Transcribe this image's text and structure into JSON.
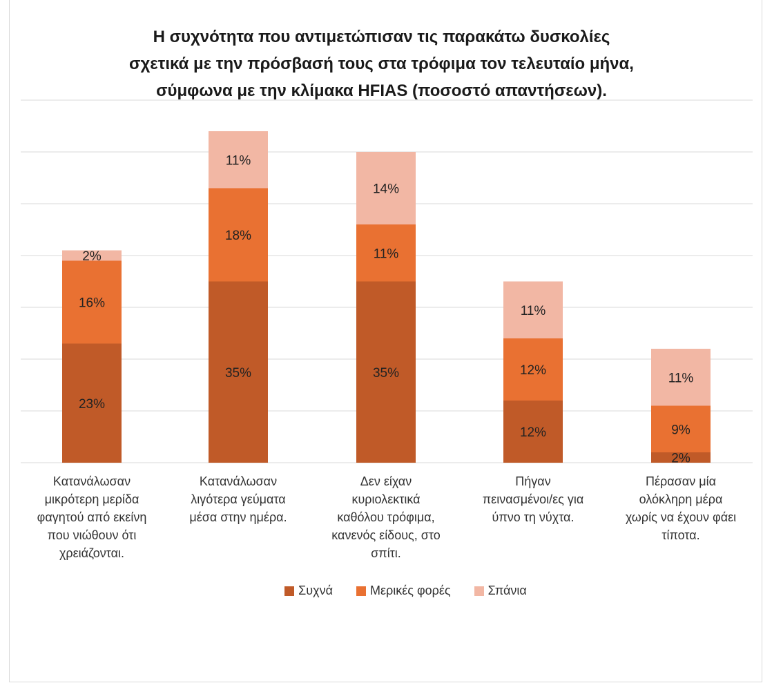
{
  "chart_data": {
    "type": "bar",
    "stacked": true,
    "title_lines": [
      "Η συχνότητα που αντιμετώπισαν τις παρακάτω δυσκολίες",
      "σχετικά με την πρόσβασή τους στα τρόφιμα τον τελευταίο μήνα,",
      "σύμφωνα με την κλίμακα HFIAS (ποσοστό απαντήσεων)."
    ],
    "categories": [
      [
        "Κατανάλωσαν",
        "μικρότερη μερίδα",
        "φαγητού από εκείνη",
        "που νιώθουν ότι",
        "χρειάζονται."
      ],
      [
        "Κατανάλωσαν",
        "λιγότερα γεύματα",
        "μέσα στην ημέρα."
      ],
      [
        "Δεν είχαν",
        "κυριολεκτικά",
        "καθόλου τρόφιμα,",
        "κανενός είδους, στο",
        "σπίτι."
      ],
      [
        "Πήγαν",
        "πεινασμένοι/ες για",
        "ύπνο τη νύχτα."
      ],
      [
        "Πέρασαν μία",
        "ολόκληρη μέρα",
        "χωρίς να έχουν φάει",
        "τίποτα."
      ]
    ],
    "series": [
      {
        "name": "Συχνά",
        "color": "#c05a28",
        "values": [
          23,
          35,
          35,
          12,
          2
        ],
        "labels": [
          "23%",
          "35%",
          "35%",
          "12%",
          "2%"
        ]
      },
      {
        "name": "Μερικές φορές",
        "color": "#e97132",
        "values": [
          16,
          18,
          11,
          12,
          9
        ],
        "labels": [
          "16%",
          "18%",
          "11%",
          "12%",
          "9%"
        ]
      },
      {
        "name": "Σπάνια",
        "color": "#f2b7a4",
        "values": [
          2,
          11,
          14,
          11,
          11
        ],
        "labels": [
          "2%",
          "11%",
          "14%",
          "11%",
          "11%"
        ]
      }
    ],
    "ylim": [
      0,
      70
    ],
    "y_grid_step": 10,
    "grid": true,
    "y_axis_labels_shown": false,
    "legend_position": "bottom"
  }
}
